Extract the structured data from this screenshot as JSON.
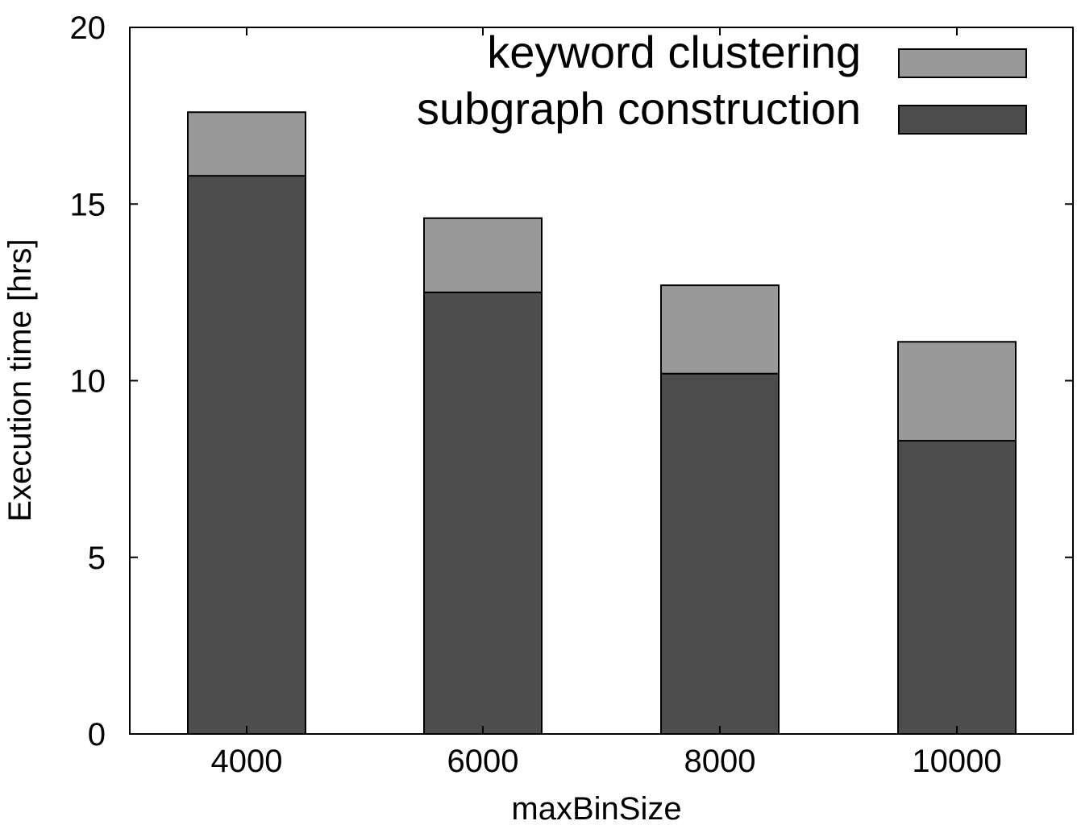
{
  "chart_data": {
    "type": "bar",
    "stacked": true,
    "categories": [
      "4000",
      "6000",
      "8000",
      "10000"
    ],
    "series": [
      {
        "name": "subgraph construction",
        "values": [
          15.8,
          12.5,
          10.2,
          8.3
        ]
      },
      {
        "name": "keyword clustering",
        "values": [
          1.8,
          2.1,
          2.5,
          2.8
        ]
      }
    ],
    "legend_order": [
      "keyword clustering",
      "subgraph construction"
    ],
    "xlabel": "maxBinSize",
    "ylabel": "Execution time [hrs]",
    "ylim": [
      0,
      20
    ],
    "yticks": [
      0,
      5,
      10,
      15,
      20
    ],
    "grid": false,
    "legend_position": "top-right",
    "colors": {
      "subgraph construction": "#4d4d4d",
      "keyword clustering": "#999999",
      "outline": "#000000"
    }
  }
}
